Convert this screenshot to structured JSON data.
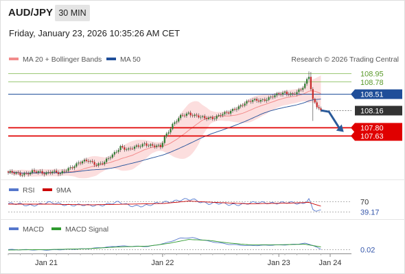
{
  "header": {
    "symbol": "AUD/JPY",
    "timeframe": "30 MIN",
    "timestamp": "Friday, January 23, 2026 10:35:26 AM CET"
  },
  "colors": {
    "candle_up": "#2e7d32",
    "candle_down": "#c62828",
    "bollinger_fill": "#fbd3d3",
    "ma20": "#f28b8b",
    "ma50": "#1f4e99",
    "resistance": "#7ab648",
    "pivot": "#1f4e99",
    "support": "#e00000",
    "current": "#333333",
    "arrow": "#2a5a9a",
    "rsi": "#5577cc",
    "rsi_ma": "#cc0000",
    "macd": "#5577cc",
    "macd_signal": "#2e9a2e"
  },
  "chart_data": [
    {
      "type": "candlestick",
      "name": "price",
      "legend": [
        {
          "label": "MA 20 + Bollinger Bands",
          "color": "#f28b8b"
        },
        {
          "label": "MA 50",
          "color": "#1f4e99"
        }
      ],
      "watermark": "Research © 2026 Trading Central",
      "ylim": [
        106.75,
        109.05
      ],
      "x_ticks": [
        "Jan 21",
        "Jan 22",
        "Jan 23",
        "Jan 24"
      ],
      "levels": [
        {
          "label": "108.95",
          "value": 108.95,
          "kind": "resistance"
        },
        {
          "label": "108.78",
          "value": 108.78,
          "kind": "resistance"
        },
        {
          "label": "108.51",
          "value": 108.51,
          "kind": "pivot"
        },
        {
          "label": "108.16",
          "value": 108.16,
          "kind": "current"
        },
        {
          "label": "107.80",
          "value": 107.8,
          "kind": "support"
        },
        {
          "label": "107.63",
          "value": 107.63,
          "kind": "support"
        }
      ],
      "close_anchors": [
        [
          0,
          106.84
        ],
        [
          6,
          106.8
        ],
        [
          12,
          106.86
        ],
        [
          18,
          106.82
        ],
        [
          22,
          106.88
        ],
        [
          26,
          106.8
        ],
        [
          30,
          106.92
        ],
        [
          35,
          107.05
        ],
        [
          40,
          107.08
        ],
        [
          44,
          107.02
        ],
        [
          48,
          107.06
        ],
        [
          52,
          107.2
        ],
        [
          56,
          107.4
        ],
        [
          60,
          107.32
        ],
        [
          64,
          107.38
        ],
        [
          68,
          107.46
        ],
        [
          72,
          107.4
        ],
        [
          76,
          107.38
        ],
        [
          78,
          107.6
        ],
        [
          82,
          107.86
        ],
        [
          86,
          108.02
        ],
        [
          90,
          108.1
        ],
        [
          94,
          108.05
        ],
        [
          98,
          107.98
        ],
        [
          102,
          108.0
        ],
        [
          106,
          108.08
        ],
        [
          110,
          108.1
        ],
        [
          114,
          108.22
        ],
        [
          118,
          108.32
        ],
        [
          122,
          108.36
        ],
        [
          126,
          108.38
        ],
        [
          130,
          108.42
        ],
        [
          134,
          108.48
        ],
        [
          138,
          108.55
        ],
        [
          142,
          108.5
        ],
        [
          146,
          108.58
        ],
        [
          148,
          108.72
        ],
        [
          150,
          108.9
        ],
        [
          152,
          108.4
        ],
        [
          154,
          108.25
        ],
        [
          156,
          108.16
        ]
      ],
      "projection": [
        [
          156,
          108.16
        ],
        [
          160,
          108.13
        ],
        [
          166,
          107.73
        ]
      ]
    },
    {
      "type": "line",
      "name": "rsi",
      "legend": [
        {
          "label": "RSI",
          "color": "#5577cc"
        },
        {
          "label": "9MA",
          "color": "#cc0000"
        }
      ],
      "ylim": [
        25,
        85
      ],
      "levels": [
        {
          "label": "70",
          "value": 70
        },
        {
          "label": "39.17",
          "value": 39.17
        }
      ],
      "series": [
        {
          "key": "rsi",
          "values": [
            [
              0,
              62
            ],
            [
              10,
              58
            ],
            [
              20,
              64
            ],
            [
              30,
              60
            ],
            [
              40,
              56
            ],
            [
              50,
              62
            ],
            [
              55,
              65
            ],
            [
              60,
              58
            ],
            [
              70,
              56
            ],
            [
              78,
              68
            ],
            [
              85,
              72
            ],
            [
              92,
              74
            ],
            [
              100,
              64
            ],
            [
              110,
              60
            ],
            [
              120,
              63
            ],
            [
              130,
              66
            ],
            [
              140,
              64
            ],
            [
              147,
              63
            ],
            [
              150,
              78
            ],
            [
              152,
              45
            ],
            [
              156,
              39
            ]
          ]
        },
        {
          "key": "rsi_ma",
          "values": [
            [
              0,
              61
            ],
            [
              20,
              61
            ],
            [
              40,
              59
            ],
            [
              60,
              61
            ],
            [
              78,
              63
            ],
            [
              90,
              70
            ],
            [
              100,
              67
            ],
            [
              120,
              62
            ],
            [
              140,
              64
            ],
            [
              150,
              66
            ],
            [
              156,
              55
            ]
          ]
        }
      ]
    },
    {
      "type": "line",
      "name": "macd",
      "legend": [
        {
          "label": "MACD",
          "color": "#5577cc"
        },
        {
          "label": "MACD Signal",
          "color": "#2e9a2e"
        }
      ],
      "ylim": [
        -0.1,
        0.4
      ],
      "levels": [
        {
          "label": "0.02",
          "value": 0.02
        }
      ],
      "series": [
        {
          "key": "macd",
          "values": [
            [
              0,
              0.02
            ],
            [
              20,
              0.01
            ],
            [
              40,
              0.04
            ],
            [
              55,
              0.1
            ],
            [
              70,
              0.09
            ],
            [
              78,
              0.16
            ],
            [
              86,
              0.28
            ],
            [
              92,
              0.29
            ],
            [
              100,
              0.21
            ],
            [
              110,
              0.14
            ],
            [
              120,
              0.11
            ],
            [
              130,
              0.12
            ],
            [
              140,
              0.13
            ],
            [
              148,
              0.16
            ],
            [
              152,
              0.12
            ],
            [
              156,
              0.02
            ]
          ]
        },
        {
          "key": "macd_signal",
          "values": [
            [
              0,
              0.01
            ],
            [
              20,
              0.02
            ],
            [
              40,
              0.04
            ],
            [
              55,
              0.08
            ],
            [
              70,
              0.1
            ],
            [
              80,
              0.16
            ],
            [
              90,
              0.25
            ],
            [
              100,
              0.23
            ],
            [
              110,
              0.17
            ],
            [
              120,
              0.13
            ],
            [
              135,
              0.13
            ],
            [
              148,
              0.14
            ],
            [
              156,
              0.08
            ]
          ]
        }
      ]
    }
  ]
}
